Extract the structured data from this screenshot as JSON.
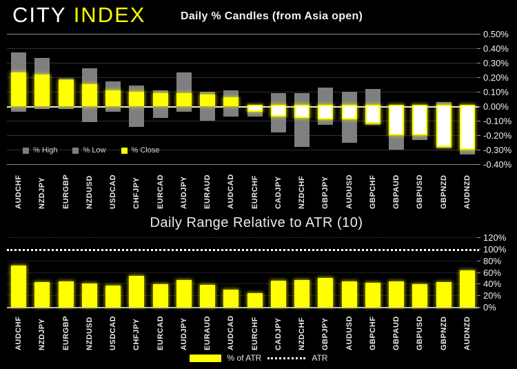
{
  "logo": {
    "city": "CITY",
    "index": "INDEX"
  },
  "top_chart": {
    "title": "Daily % Candles (from Asia open)",
    "legend": [
      {
        "label": "% High",
        "color": "#7f7f7f"
      },
      {
        "label": "% Low",
        "color": "#7f7f7f"
      },
      {
        "label": "% Close",
        "color": "#ffff00"
      }
    ]
  },
  "bottom_chart": {
    "title": "Daily Range Relative to ATR (10)",
    "legend": {
      "bar_label": "% of ATR",
      "line_label": "ATR"
    }
  },
  "colors": {
    "background": "#000000",
    "accent_yellow": "#ffff00",
    "bar_gray": "#7f7f7f",
    "negative_close_fill": "#ffffff",
    "text": "#ffffff"
  },
  "chart_data": [
    {
      "type": "bar",
      "subtype": "candle-high-low-close",
      "title": "Daily % Candles (from Asia open)",
      "categories": [
        "AUDCHF",
        "NZDJPY",
        "EURGBP",
        "NZDUSD",
        "USDCAD",
        "CHFJPY",
        "EURCAD",
        "AUDJPY",
        "EURAUD",
        "AUDCAD",
        "EURCHF",
        "CADJPY",
        "NZDCHF",
        "GBPJPY",
        "AUDUSD",
        "GBPCHF",
        "GBPAUD",
        "GBPUSD",
        "GBPNZD",
        "AUDNZD"
      ],
      "series": [
        {
          "name": "% High",
          "values": [
            0.37,
            0.33,
            0.19,
            0.26,
            0.17,
            0.14,
            0.11,
            0.23,
            0.1,
            0.11,
            0.01,
            0.09,
            0.09,
            0.13,
            0.1,
            0.12,
            0.01,
            0.01,
            0.03,
            0.01
          ]
        },
        {
          "name": "% Low",
          "values": [
            -0.04,
            -0.02,
            -0.02,
            -0.11,
            -0.04,
            -0.14,
            -0.08,
            -0.04,
            -0.1,
            -0.07,
            -0.07,
            -0.18,
            -0.28,
            -0.13,
            -0.25,
            -0.13,
            -0.3,
            -0.23,
            -0.29,
            -0.33
          ]
        },
        {
          "name": "% Close",
          "values": [
            0.23,
            0.22,
            0.18,
            0.15,
            0.11,
            0.1,
            0.09,
            0.09,
            0.08,
            0.06,
            -0.03,
            -0.06,
            -0.07,
            -0.08,
            -0.08,
            -0.11,
            -0.19,
            -0.19,
            -0.27,
            -0.29
          ]
        }
      ],
      "ylim": [
        -0.4,
        0.5
      ],
      "y_ticks": [
        {
          "label": "0.50%",
          "value": 0.5
        },
        {
          "label": "0.40%",
          "value": 0.4
        },
        {
          "label": "0.30%",
          "value": 0.3
        },
        {
          "label": "0.20%",
          "value": 0.2
        },
        {
          "label": "0.10%",
          "value": 0.1
        },
        {
          "label": "0.00%",
          "value": 0.0
        },
        {
          "label": "-0.10%",
          "value": -0.1
        },
        {
          "label": "-0.20%",
          "value": -0.2
        },
        {
          "label": "-0.30%",
          "value": -0.3
        },
        {
          "label": "-0.40%",
          "value": -0.4
        }
      ],
      "grid": true,
      "legend_position": "inside-bottom-left"
    },
    {
      "type": "bar",
      "title": "Daily Range Relative to ATR (10)",
      "categories": [
        "AUDCHF",
        "NZDJPY",
        "EURGBP",
        "NZDUSD",
        "USDCAD",
        "CHFJPY",
        "EURCAD",
        "AUDJPY",
        "EURAUD",
        "AUDCAD",
        "EURCHF",
        "CADJPY",
        "NZDCHF",
        "GBPJPY",
        "AUDUSD",
        "GBPCHF",
        "GBPAUD",
        "GBPUSD",
        "GBPNZD",
        "AUDNZD"
      ],
      "values": [
        71,
        43,
        44,
        41,
        37,
        54,
        39,
        47,
        38,
        30,
        24,
        45,
        46,
        50,
        44,
        42,
        44,
        39,
        43,
        63
      ],
      "unit": "% of ATR",
      "reference_line": {
        "label": "ATR",
        "value": 100,
        "style": "dotted-white"
      },
      "ylim": [
        0,
        120
      ],
      "y_ticks": [
        {
          "label": "120%",
          "value": 120
        },
        {
          "label": "100%",
          "value": 100
        },
        {
          "label": "80%",
          "value": 80
        },
        {
          "label": "60%",
          "value": 60
        },
        {
          "label": "40%",
          "value": 40
        },
        {
          "label": "20%",
          "value": 20
        },
        {
          "label": "0%",
          "value": 0
        }
      ],
      "grid": true,
      "legend_position": "bottom-center"
    }
  ]
}
